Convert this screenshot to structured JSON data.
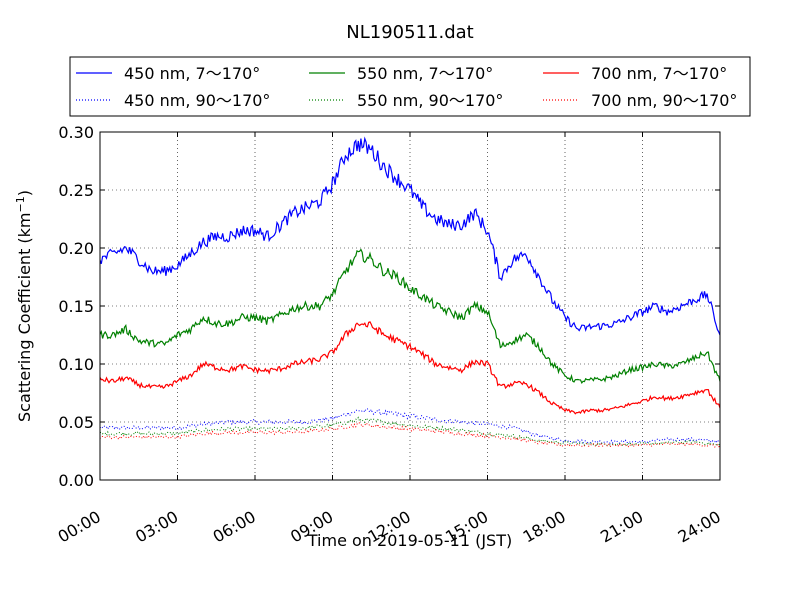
{
  "chart_data": {
    "type": "line",
    "title": "NL190511.dat",
    "xlabel": "Time on 2019-05-11 (JST)",
    "ylabel_main": "Scattering Coefficient (km",
    "ylabel_sup": "−1",
    "ylabel_close": ")",
    "xlim": [
      "2019-05-11 00:00",
      "2019-05-12 00:00"
    ],
    "ylim": [
      0.0,
      0.3
    ],
    "grid": true,
    "grid_style": "dotted",
    "legend_position": "top, above plot",
    "x_ticks": [
      {
        "hour": 0,
        "label": "00:00"
      },
      {
        "hour": 3,
        "label": "03:00"
      },
      {
        "hour": 6,
        "label": "06:00"
      },
      {
        "hour": 9,
        "label": "09:00"
      },
      {
        "hour": 12,
        "label": "12:00"
      },
      {
        "hour": 15,
        "label": "15:00"
      },
      {
        "hour": 18,
        "label": "18:00"
      },
      {
        "hour": 21,
        "label": "21:00"
      },
      {
        "hour": 24,
        "label": "24:00"
      }
    ],
    "y_ticks": [
      {
        "value": 0.0,
        "label": "0.00"
      },
      {
        "value": 0.05,
        "label": "0.05"
      },
      {
        "value": 0.1,
        "label": "0.10"
      },
      {
        "value": 0.15,
        "label": "0.15"
      },
      {
        "value": 0.2,
        "label": "0.20"
      },
      {
        "value": 0.25,
        "label": "0.25"
      },
      {
        "value": 0.3,
        "label": "0.30"
      }
    ],
    "x_unit": "hour of day (JST)",
    "series": [
      {
        "name": "450 nm, 7～170°",
        "color": "#0000ff",
        "dash": "solid",
        "x": [
          0,
          0.5,
          1,
          1.5,
          2,
          2.5,
          3,
          3.5,
          4,
          4.5,
          5,
          5.5,
          6,
          6.5,
          7,
          7.5,
          8,
          8.5,
          9,
          9.5,
          10,
          10.5,
          11,
          11.5,
          12,
          12.5,
          13,
          13.5,
          14,
          14.5,
          15,
          15.5,
          16,
          16.5,
          17,
          17.5,
          18,
          18.5,
          19,
          19.5,
          20,
          20.5,
          21,
          21.5,
          22,
          22.5,
          23,
          23.5,
          24
        ],
        "y": [
          0.19,
          0.195,
          0.2,
          0.19,
          0.18,
          0.18,
          0.185,
          0.195,
          0.205,
          0.21,
          0.21,
          0.215,
          0.215,
          0.21,
          0.22,
          0.23,
          0.235,
          0.24,
          0.255,
          0.28,
          0.29,
          0.285,
          0.27,
          0.26,
          0.25,
          0.235,
          0.225,
          0.22,
          0.22,
          0.23,
          0.215,
          0.175,
          0.19,
          0.195,
          0.175,
          0.155,
          0.14,
          0.13,
          0.132,
          0.133,
          0.135,
          0.14,
          0.145,
          0.15,
          0.145,
          0.15,
          0.155,
          0.16,
          0.125
        ]
      },
      {
        "name": "550 nm, 7～170°",
        "color": "#008000",
        "dash": "solid",
        "x": [
          0,
          0.5,
          1,
          1.5,
          2,
          2.5,
          3,
          3.5,
          4,
          4.5,
          5,
          5.5,
          6,
          6.5,
          7,
          7.5,
          8,
          8.5,
          9,
          9.5,
          10,
          10.5,
          11,
          11.5,
          12,
          12.5,
          13,
          13.5,
          14,
          14.5,
          15,
          15.5,
          16,
          16.5,
          17,
          17.5,
          18,
          18.5,
          19,
          19.5,
          20,
          20.5,
          21,
          21.5,
          22,
          22.5,
          23,
          23.5,
          24
        ],
        "y": [
          0.125,
          0.125,
          0.13,
          0.12,
          0.118,
          0.117,
          0.125,
          0.13,
          0.14,
          0.135,
          0.135,
          0.14,
          0.14,
          0.137,
          0.142,
          0.148,
          0.15,
          0.15,
          0.16,
          0.18,
          0.195,
          0.19,
          0.18,
          0.175,
          0.165,
          0.158,
          0.15,
          0.145,
          0.14,
          0.15,
          0.145,
          0.115,
          0.12,
          0.125,
          0.115,
          0.1,
          0.09,
          0.085,
          0.086,
          0.087,
          0.09,
          0.095,
          0.097,
          0.1,
          0.098,
          0.1,
          0.105,
          0.11,
          0.085
        ]
      },
      {
        "name": "700 nm, 7～170°",
        "color": "#ff0000",
        "dash": "solid",
        "x": [
          0,
          0.5,
          1,
          1.5,
          2,
          2.5,
          3,
          3.5,
          4,
          4.5,
          5,
          5.5,
          6,
          6.5,
          7,
          7.5,
          8,
          8.5,
          9,
          9.5,
          10,
          10.5,
          11,
          11.5,
          12,
          12.5,
          13,
          13.5,
          14,
          14.5,
          15,
          15.5,
          16,
          16.5,
          17,
          17.5,
          18,
          18.5,
          19,
          19.5,
          20,
          20.5,
          21,
          21.5,
          22,
          22.5,
          23,
          23.5,
          24
        ],
        "y": [
          0.087,
          0.085,
          0.088,
          0.082,
          0.08,
          0.08,
          0.085,
          0.09,
          0.1,
          0.097,
          0.095,
          0.098,
          0.095,
          0.094,
          0.096,
          0.1,
          0.102,
          0.104,
          0.11,
          0.125,
          0.135,
          0.133,
          0.125,
          0.12,
          0.115,
          0.108,
          0.1,
          0.097,
          0.095,
          0.102,
          0.1,
          0.08,
          0.083,
          0.083,
          0.075,
          0.066,
          0.06,
          0.058,
          0.06,
          0.06,
          0.062,
          0.065,
          0.068,
          0.072,
          0.07,
          0.072,
          0.075,
          0.078,
          0.062
        ]
      },
      {
        "name": "450 nm, 90～170°",
        "color": "#0000ff",
        "dash": "dotted",
        "x": [
          0,
          1,
          2,
          3,
          4,
          5,
          6,
          7,
          8,
          9,
          10,
          11,
          12,
          13,
          14,
          15,
          16,
          17,
          18,
          19,
          20,
          21,
          22,
          23,
          24
        ],
        "y": [
          0.045,
          0.045,
          0.045,
          0.045,
          0.048,
          0.05,
          0.05,
          0.05,
          0.05,
          0.053,
          0.06,
          0.058,
          0.055,
          0.052,
          0.05,
          0.048,
          0.045,
          0.038,
          0.034,
          0.033,
          0.033,
          0.033,
          0.035,
          0.035,
          0.033
        ]
      },
      {
        "name": "550 nm, 90～170°",
        "color": "#008000",
        "dash": "dotted",
        "x": [
          0,
          1,
          2,
          3,
          4,
          5,
          6,
          7,
          8,
          9,
          10,
          11,
          12,
          13,
          14,
          15,
          16,
          17,
          18,
          19,
          20,
          21,
          22,
          23,
          24
        ],
        "y": [
          0.04,
          0.04,
          0.04,
          0.04,
          0.043,
          0.044,
          0.044,
          0.044,
          0.045,
          0.047,
          0.052,
          0.05,
          0.047,
          0.045,
          0.043,
          0.04,
          0.038,
          0.034,
          0.032,
          0.031,
          0.031,
          0.031,
          0.032,
          0.033,
          0.03
        ]
      },
      {
        "name": "700 nm, 90～170°",
        "color": "#ff0000",
        "dash": "dotted",
        "x": [
          0,
          1,
          2,
          3,
          4,
          5,
          6,
          7,
          8,
          9,
          10,
          11,
          12,
          13,
          14,
          15,
          16,
          17,
          18,
          19,
          20,
          21,
          22,
          23,
          24
        ],
        "y": [
          0.037,
          0.037,
          0.037,
          0.037,
          0.04,
          0.041,
          0.041,
          0.041,
          0.042,
          0.044,
          0.048,
          0.046,
          0.044,
          0.042,
          0.04,
          0.038,
          0.036,
          0.032,
          0.03,
          0.03,
          0.03,
          0.03,
          0.031,
          0.031,
          0.029
        ]
      }
    ]
  }
}
